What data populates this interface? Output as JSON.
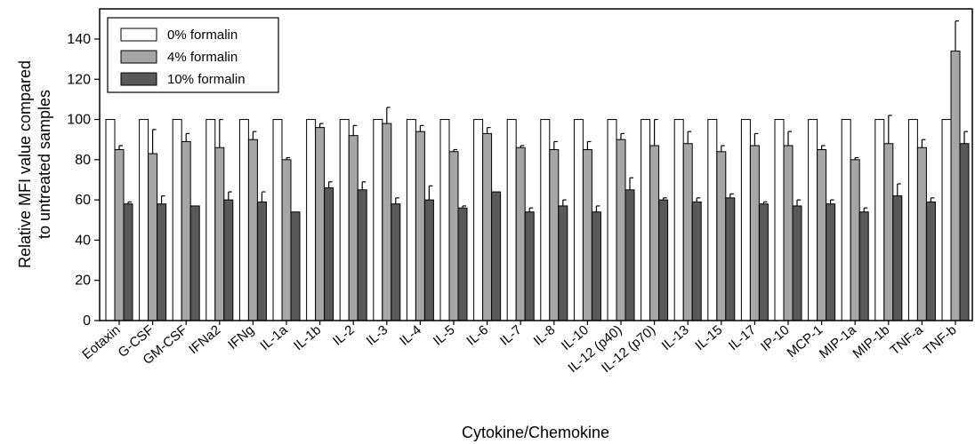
{
  "chart_data": {
    "type": "bar",
    "xlabel": "Cytokine/Chemokine",
    "ylabel_lines": [
      "Relative MFI value compared",
      "to untreated samples"
    ],
    "ylim": [
      0,
      155
    ],
    "yticks": [
      0,
      20,
      40,
      60,
      80,
      100,
      120,
      140
    ],
    "legend_position": "top-left",
    "grid": false,
    "categories": [
      "Eotaxin",
      "G-CSF",
      "GM-CSF",
      "IFNa2",
      "IFNg",
      "IL-1a",
      "IL-1b",
      "IL-2",
      "IL-3",
      "IL-4",
      "IL-5",
      "IL-6",
      "IL-7",
      "IL-8",
      "IL-10",
      "IL-12 (p40)",
      "IL-12 (p70)",
      "IL-13",
      "IL-15",
      "IL-17",
      "IP-10",
      "MCP-1",
      "MIP-1a",
      "MIP-1b",
      "TNF-a",
      "TNF-b"
    ],
    "series": [
      {
        "name": "0% formalin",
        "color": "#ffffff",
        "values": [
          100,
          100,
          100,
          100,
          100,
          100,
          100,
          100,
          100,
          100,
          100,
          100,
          100,
          100,
          100,
          100,
          100,
          100,
          100,
          100,
          100,
          100,
          100,
          100,
          100,
          100
        ],
        "errors": [
          0,
          0,
          0,
          0,
          0,
          0,
          0,
          0,
          0,
          0,
          0,
          0,
          0,
          0,
          0,
          0,
          0,
          0,
          0,
          0,
          0,
          0,
          0,
          0,
          0,
          0
        ]
      },
      {
        "name": "4% formalin",
        "color": "#a6a6a6",
        "values": [
          85,
          83,
          89,
          86,
          90,
          80,
          96,
          92,
          98,
          94,
          84,
          93,
          86,
          85,
          85,
          90,
          87,
          88,
          84,
          87,
          87,
          85,
          80,
          88,
          86,
          134
        ],
        "errors": [
          2,
          12,
          4,
          14,
          4,
          1,
          2,
          5,
          8,
          3,
          1,
          3,
          1,
          4,
          4,
          3,
          13,
          6,
          3,
          6,
          7,
          2,
          1,
          14,
          4,
          15
        ]
      },
      {
        "name": "10% formalin",
        "color": "#595959",
        "values": [
          58,
          58,
          57,
          60,
          59,
          54,
          66,
          65,
          58,
          60,
          56,
          64,
          54,
          57,
          54,
          65,
          60,
          59,
          61,
          58,
          57,
          58,
          54,
          62,
          59,
          88
        ],
        "errors": [
          1,
          4,
          0,
          4,
          5,
          0,
          3,
          4,
          3,
          7,
          1,
          0,
          2,
          3,
          3,
          6,
          1,
          2,
          2,
          1,
          3,
          2,
          2,
          6,
          2,
          6
        ]
      }
    ]
  }
}
